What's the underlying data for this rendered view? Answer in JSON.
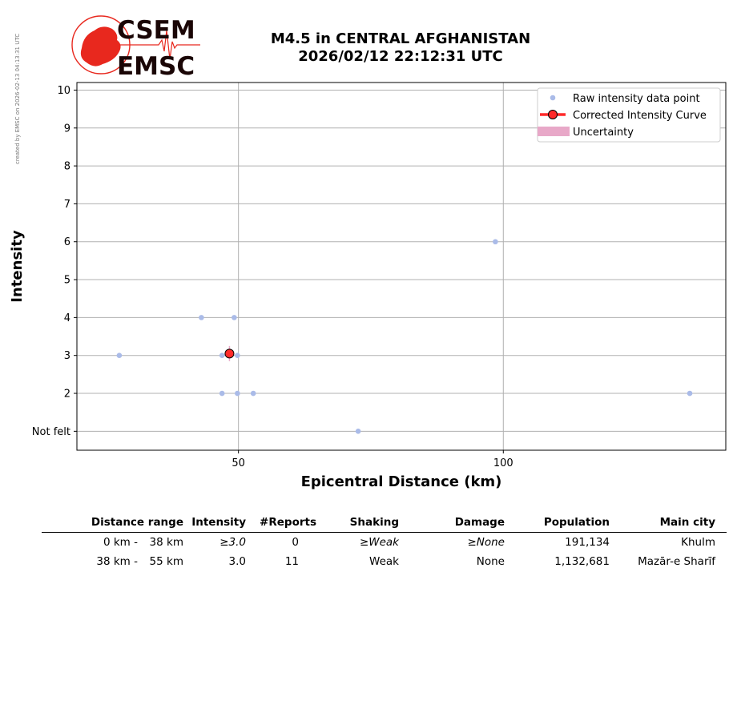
{
  "watermark": "created by EMSC on 2026-02-13 04:13:31 UTC",
  "logo": {
    "line1": "CSEM",
    "line2": "EMSC"
  },
  "header": {
    "title_line1": "M4.5 in CENTRAL AFGHANISTAN",
    "title_line2": "2026/02/12 22:12:31 UTC"
  },
  "colors": {
    "raw_points": "#aabbe8",
    "corrected": "#ff2a2a",
    "uncertainty": "#e8a8c8",
    "grid": "#b0b0b0",
    "logo_red": "#e8281e",
    "logo_dark": "#1a0606"
  },
  "chart_data": {
    "type": "scatter",
    "xlabel": "Epicentral Distance (km)",
    "ylabel": "Intensity",
    "xlim": [
      19.5,
      142
    ],
    "ylim": [
      0.5,
      10.2
    ],
    "x_ticks": [
      50,
      100
    ],
    "y_ticks": [
      {
        "value": 1,
        "label": "Not felt"
      },
      {
        "value": 2,
        "label": "2"
      },
      {
        "value": 3,
        "label": "3"
      },
      {
        "value": 4,
        "label": "4"
      },
      {
        "value": 5,
        "label": "5"
      },
      {
        "value": 6,
        "label": "6"
      },
      {
        "value": 7,
        "label": "7"
      },
      {
        "value": 8,
        "label": "8"
      },
      {
        "value": 9,
        "label": "9"
      },
      {
        "value": 10,
        "label": "10"
      }
    ],
    "grid": true,
    "legend_position": "top-right",
    "legend": [
      "Raw intensity data point",
      "Corrected Intensity Curve",
      "Uncertainty"
    ],
    "series": [
      {
        "name": "Raw intensity data point",
        "points": [
          {
            "x": 27.5,
            "y": 3
          },
          {
            "x": 43.0,
            "y": 4
          },
          {
            "x": 49.2,
            "y": 4
          },
          {
            "x": 46.9,
            "y": 3
          },
          {
            "x": 49.8,
            "y": 3
          },
          {
            "x": 46.9,
            "y": 2
          },
          {
            "x": 49.8,
            "y": 2
          },
          {
            "x": 52.8,
            "y": 2
          },
          {
            "x": 72.6,
            "y": 1
          },
          {
            "x": 98.5,
            "y": 6
          },
          {
            "x": 135.2,
            "y": 2
          }
        ]
      },
      {
        "name": "Corrected Intensity Curve",
        "points": [
          {
            "x": 48.3,
            "y": 3.05
          }
        ],
        "uncertainty": [
          2.85,
          3.25
        ]
      }
    ]
  },
  "table": {
    "headers": [
      "Distance range",
      "Intensity",
      "#Reports",
      "Shaking",
      "Damage",
      "Population",
      "Main city"
    ],
    "rows": [
      {
        "range_from": "0 km -",
        "range_to": "38 km",
        "intensity": "≥3.0",
        "reports": "0",
        "shaking": "≥Weak",
        "damage": "≥None",
        "population": "191,134",
        "city": "Khulm"
      },
      {
        "range_from": "38 km -",
        "range_to": "55 km",
        "intensity": "3.0",
        "reports": "11",
        "shaking": "Weak",
        "damage": "None",
        "population": "1,132,681",
        "city": "Mazār-e Sharīf"
      }
    ]
  }
}
